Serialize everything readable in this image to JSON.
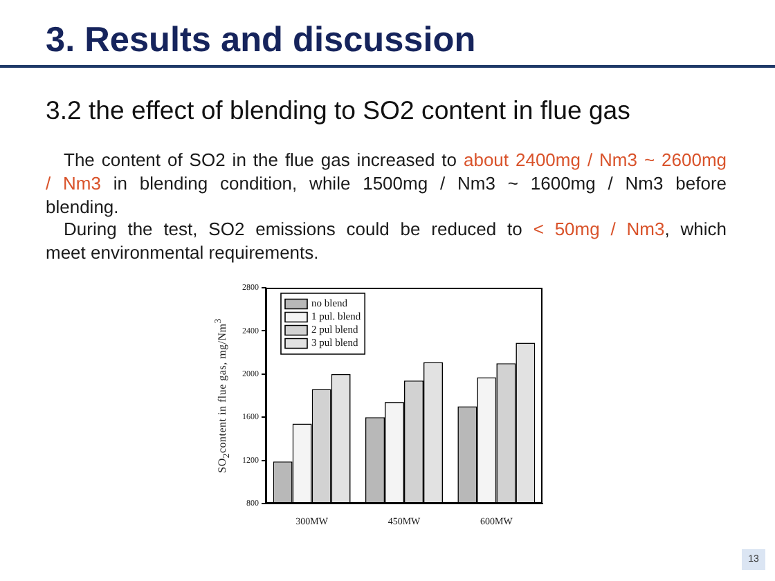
{
  "chart_data": {
    "type": "bar",
    "title": "3. Results and discussion",
    "subtitle": "3.2 the effect of blending to SO2 content in flue gas",
    "ylabel": "SO$_{2}$content in flue gas, mg/Nm$^{3}$",
    "categories": [
      "300MW",
      "450MW",
      "600MW"
    ],
    "series": [
      {
        "name": "no blend",
        "color": "#b8b8b8",
        "values": [
          1190,
          1600,
          1700
        ]
      },
      {
        "name": "1 pul. blend",
        "color": "#f4f4f4",
        "values": [
          1540,
          1740,
          1970
        ]
      },
      {
        "name": "2 pul blend",
        "color": "#d2d2d2",
        "values": [
          1860,
          1940,
          2100
        ]
      },
      {
        "name": "3 pul blend",
        "color": "#e2e2e2",
        "values": [
          2000,
          2110,
          2290
        ]
      }
    ],
    "ylim": [
      800,
      2800
    ],
    "yticks": [
      800,
      1200,
      1600,
      2000,
      2400,
      2800
    ],
    "legend": "top left",
    "annotations": [
      "The content of SO2 in the flue gas increased to ",
      "about 2400mg / Nm3 ~ 2600mg",
      "/ Nm3",
      " in blending condition, while 1500mg / Nm3 ~ 1600mg / Nm3 before",
      "blending.",
      "During the test, SO2 emissions could be reduced to ",
      "< 50mg / Nm3",
      ", which",
      "meet environmental requirements.",
      "13"
    ]
  }
}
